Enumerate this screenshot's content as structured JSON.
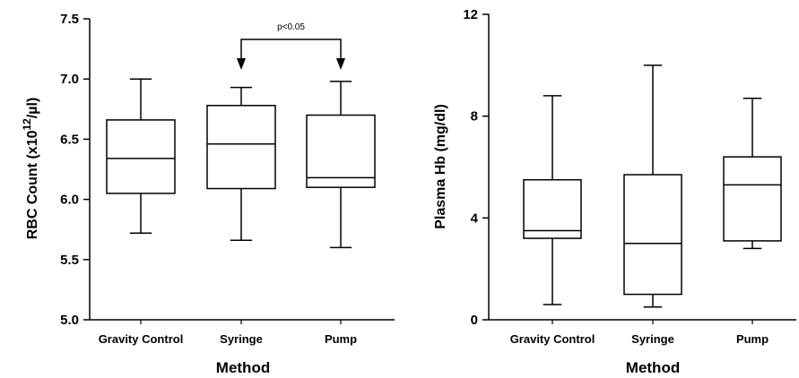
{
  "chart_data": [
    {
      "type": "box",
      "xlabel": "Method",
      "ylabel": "RBC Count (x10",
      "ylabel_sup": "12",
      "ylabel_tail": "/µl)",
      "ylim": [
        5.0,
        7.5
      ],
      "yticks": [
        "5.0",
        "5.5",
        "6.0",
        "6.5",
        "7.0",
        "7.5"
      ],
      "categories": [
        "Gravity Control",
        "Syringe",
        "Pump"
      ],
      "boxes": [
        {
          "min": 5.72,
          "q1": 6.05,
          "median": 6.34,
          "q3": 6.66,
          "max": 7.0
        },
        {
          "min": 5.66,
          "q1": 6.09,
          "median": 6.46,
          "q3": 6.78,
          "max": 6.93
        },
        {
          "min": 5.6,
          "q1": 6.1,
          "median": 6.18,
          "q3": 6.7,
          "max": 6.98
        }
      ],
      "annotation": {
        "text": "p<0.05",
        "from": "Syringe",
        "to": "Pump"
      },
      "grid": false
    },
    {
      "type": "box",
      "xlabel": "Method",
      "ylabel": "Plasma Hb (mg/dl)",
      "ylim": [
        0,
        12
      ],
      "yticks": [
        "0",
        "4",
        "8",
        "12"
      ],
      "categories": [
        "Gravity Control",
        "Syringe",
        "Pump"
      ],
      "boxes": [
        {
          "min": 0.6,
          "q1": 3.2,
          "median": 3.5,
          "q3": 5.5,
          "max": 8.8
        },
        {
          "min": 0.5,
          "q1": 1.0,
          "median": 3.0,
          "q3": 5.7,
          "max": 10.0
        },
        {
          "min": 2.8,
          "q1": 3.1,
          "median": 5.3,
          "q3": 6.4,
          "max": 8.7
        }
      ],
      "grid": false
    }
  ]
}
